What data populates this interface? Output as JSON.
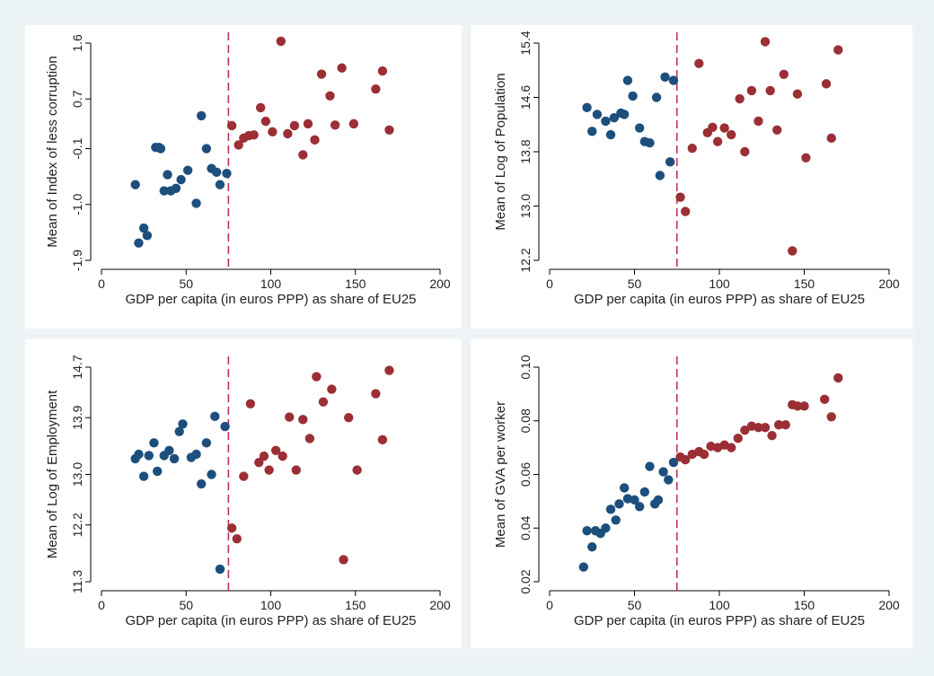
{
  "colors": {
    "below_threshold": "#1d4f7c",
    "above_threshold": "#9b2f35",
    "cutoff_line": "#c0315a",
    "background": "#eaf2f3"
  },
  "chart_data": [
    {
      "type": "scatter",
      "xlabel": "GDP per capita (in euros PPP) as share of EU25",
      "ylabel": "Mean of Index of less corruption",
      "xlim": [
        0,
        200
      ],
      "ylim": [
        -1.9,
        1.6
      ],
      "xticks": [
        "0",
        "50",
        "100",
        "150",
        "200"
      ],
      "yticks": [
        "-1.9",
        "-1.0",
        "-0.1",
        "0.7",
        "1.6"
      ],
      "ytick_values": [
        -1.9,
        -1.0,
        -0.1,
        0.7,
        1.6
      ],
      "cutoff_x": 75,
      "grid": false,
      "series": [
        {
          "group": "below",
          "points": [
            [
              20,
              -0.68
            ],
            [
              22,
              -1.62
            ],
            [
              25,
              -1.38
            ],
            [
              27,
              -1.5
            ],
            [
              32,
              -0.08
            ],
            [
              34,
              -0.08
            ],
            [
              35,
              -0.1
            ],
            [
              37,
              -0.78
            ],
            [
              39,
              -0.52
            ],
            [
              41,
              -0.78
            ],
            [
              44,
              -0.74
            ],
            [
              47,
              -0.6
            ],
            [
              51,
              -0.45
            ],
            [
              56,
              -0.98
            ],
            [
              59,
              0.43
            ],
            [
              62,
              -0.1
            ],
            [
              65,
              -0.42
            ],
            [
              68,
              -0.48
            ],
            [
              70,
              -0.68
            ],
            [
              74,
              -0.5
            ]
          ]
        },
        {
          "group": "above",
          "points": [
            [
              77,
              0.27
            ],
            [
              81,
              -0.04
            ],
            [
              84,
              0.07
            ],
            [
              87,
              0.11
            ],
            [
              90,
              0.12
            ],
            [
              94,
              0.56
            ],
            [
              97,
              0.34
            ],
            [
              101,
              0.17
            ],
            [
              106,
              1.63
            ],
            [
              110,
              0.14
            ],
            [
              114,
              0.27
            ],
            [
              119,
              -0.2
            ],
            [
              122,
              0.3
            ],
            [
              126,
              0.04
            ],
            [
              130,
              1.1
            ],
            [
              135,
              0.75
            ],
            [
              138,
              0.28
            ],
            [
              142,
              1.2
            ],
            [
              149,
              0.3
            ],
            [
              162,
              0.86
            ],
            [
              166,
              1.15
            ],
            [
              170,
              0.2
            ]
          ]
        }
      ]
    },
    {
      "type": "scatter",
      "xlabel": "GDP per capita (in euros PPP) as share of EU25",
      "ylabel": "Mean of Log of Population",
      "xlim": [
        0,
        200
      ],
      "ylim": [
        12.2,
        15.4
      ],
      "xticks": [
        "0",
        "50",
        "100",
        "150",
        "200"
      ],
      "yticks": [
        "12.2",
        "13.0",
        "13.8",
        "14.6",
        "15.4"
      ],
      "ytick_values": [
        12.2,
        13.0,
        13.8,
        14.6,
        15.4
      ],
      "cutoff_x": 75,
      "grid": false,
      "series": [
        {
          "group": "below",
          "points": [
            [
              22,
              14.45
            ],
            [
              25,
              14.1
            ],
            [
              28,
              14.35
            ],
            [
              33,
              14.25
            ],
            [
              36,
              14.05
            ],
            [
              38,
              14.3
            ],
            [
              42,
              14.37
            ],
            [
              44,
              14.35
            ],
            [
              46,
              14.85
            ],
            [
              49,
              14.62
            ],
            [
              53,
              14.15
            ],
            [
              56,
              13.95
            ],
            [
              59,
              13.93
            ],
            [
              63,
              14.6
            ],
            [
              65,
              13.45
            ],
            [
              68,
              14.9
            ],
            [
              71,
              13.65
            ],
            [
              73,
              14.85
            ]
          ]
        },
        {
          "group": "above",
          "points": [
            [
              77,
              13.13
            ],
            [
              80,
              12.92
            ],
            [
              84,
              13.85
            ],
            [
              88,
              15.1
            ],
            [
              93,
              14.08
            ],
            [
              96,
              14.16
            ],
            [
              99,
              13.95
            ],
            [
              103,
              14.15
            ],
            [
              107,
              14.05
            ],
            [
              112,
              14.58
            ],
            [
              115,
              13.8
            ],
            [
              119,
              14.7
            ],
            [
              123,
              14.25
            ],
            [
              127,
              15.42
            ],
            [
              130,
              14.7
            ],
            [
              134,
              14.12
            ],
            [
              138,
              14.94
            ],
            [
              143,
              12.34
            ],
            [
              146,
              14.65
            ],
            [
              151,
              13.71
            ],
            [
              163,
              14.8
            ],
            [
              166,
              14.0
            ],
            [
              170,
              15.3
            ]
          ]
        }
      ]
    },
    {
      "type": "scatter",
      "xlabel": "GDP per capita (in euros PPP) as share of EU25",
      "ylabel": "Mean of Log of Employment",
      "xlim": [
        0,
        200
      ],
      "ylim": [
        11.3,
        14.7
      ],
      "xticks": [
        "0",
        "50",
        "100",
        "150",
        "200"
      ],
      "yticks": [
        "11.3",
        "12.2",
        "13.0",
        "13.9",
        "14.7"
      ],
      "ytick_values": [
        11.3,
        12.2,
        13.0,
        13.9,
        14.7
      ],
      "cutoff_x": 75,
      "grid": false,
      "series": [
        {
          "group": "below",
          "points": [
            [
              20,
              13.25
            ],
            [
              22,
              13.32
            ],
            [
              25,
              12.97
            ],
            [
              28,
              13.3
            ],
            [
              31,
              13.5
            ],
            [
              33,
              13.05
            ],
            [
              37,
              13.3
            ],
            [
              40,
              13.38
            ],
            [
              43,
              13.25
            ],
            [
              46,
              13.68
            ],
            [
              48,
              13.8
            ],
            [
              53,
              13.27
            ],
            [
              56,
              13.32
            ],
            [
              59,
              12.85
            ],
            [
              62,
              13.5
            ],
            [
              65,
              13.0
            ],
            [
              67,
              13.92
            ],
            [
              70,
              11.5
            ],
            [
              73,
              13.76
            ]
          ]
        },
        {
          "group": "above",
          "points": [
            [
              77,
              12.15
            ],
            [
              80,
              11.98
            ],
            [
              84,
              12.97
            ],
            [
              88,
              14.12
            ],
            [
              93,
              13.19
            ],
            [
              96,
              13.29
            ],
            [
              99,
              13.07
            ],
            [
              103,
              13.38
            ],
            [
              107,
              13.29
            ],
            [
              111,
              13.91
            ],
            [
              115,
              13.07
            ],
            [
              119,
              13.87
            ],
            [
              123,
              13.57
            ],
            [
              127,
              14.55
            ],
            [
              131,
              14.15
            ],
            [
              136,
              14.35
            ],
            [
              143,
              11.65
            ],
            [
              146,
              13.9
            ],
            [
              151,
              13.07
            ],
            [
              162,
              14.28
            ],
            [
              166,
              13.55
            ],
            [
              170,
              14.65
            ]
          ]
        }
      ]
    },
    {
      "type": "scatter",
      "xlabel": "GDP per capita (in euros PPP) as share of EU25",
      "ylabel": "Mean of GVA per worker",
      "xlim": [
        0,
        200
      ],
      "ylim": [
        0.02,
        0.1
      ],
      "xticks": [
        "0",
        "50",
        "100",
        "150",
        "200"
      ],
      "yticks": [
        "0.02",
        "0.04",
        "0.06",
        "0.08",
        "0.10"
      ],
      "ytick_values": [
        0.02,
        0.04,
        0.06,
        0.08,
        0.1
      ],
      "cutoff_x": 75,
      "grid": false,
      "series": [
        {
          "group": "below",
          "points": [
            [
              20,
              0.0255
            ],
            [
              22,
              0.039
            ],
            [
              25,
              0.033
            ],
            [
              27,
              0.039
            ],
            [
              30,
              0.038
            ],
            [
              33,
              0.04
            ],
            [
              36,
              0.047
            ],
            [
              39,
              0.043
            ],
            [
              41,
              0.049
            ],
            [
              44,
              0.055
            ],
            [
              46,
              0.051
            ],
            [
              50,
              0.0505
            ],
            [
              53,
              0.048
            ],
            [
              56,
              0.0535
            ],
            [
              59,
              0.063
            ],
            [
              62,
              0.049
            ],
            [
              64,
              0.0505
            ],
            [
              67,
              0.061
            ],
            [
              70,
              0.058
            ],
            [
              73,
              0.0645
            ]
          ]
        },
        {
          "group": "above",
          "points": [
            [
              77,
              0.0665
            ],
            [
              80,
              0.0655
            ],
            [
              84,
              0.0675
            ],
            [
              88,
              0.0685
            ],
            [
              91,
              0.0675
            ],
            [
              95,
              0.0705
            ],
            [
              99,
              0.07
            ],
            [
              103,
              0.071
            ],
            [
              107,
              0.07
            ],
            [
              111,
              0.0735
            ],
            [
              115,
              0.0765
            ],
            [
              119,
              0.078
            ],
            [
              123,
              0.0775
            ],
            [
              127,
              0.0775
            ],
            [
              131,
              0.0745
            ],
            [
              135,
              0.0785
            ],
            [
              139,
              0.0785
            ],
            [
              143,
              0.086
            ],
            [
              146,
              0.0855
            ],
            [
              150,
              0.0855
            ],
            [
              162,
              0.088
            ],
            [
              166,
              0.0815
            ],
            [
              170,
              0.096
            ]
          ]
        }
      ]
    }
  ]
}
